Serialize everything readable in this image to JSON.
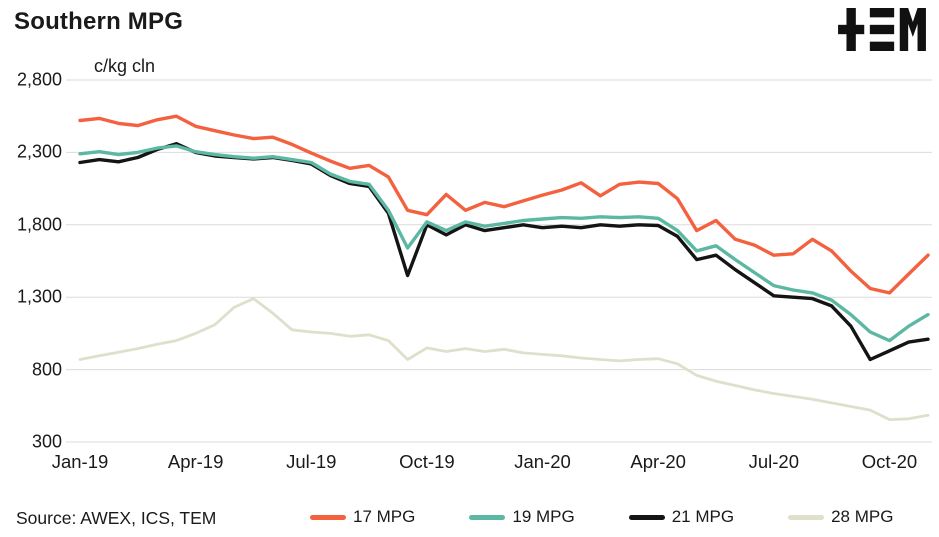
{
  "chart_data": {
    "type": "line",
    "title": "Southern MPG",
    "ylabel": "c/kg cln",
    "source": "Source: AWEX, ICS, TEM",
    "ylim": [
      300,
      2800
    ],
    "y_ticks": [
      2800,
      2300,
      1800,
      1300,
      800,
      300
    ],
    "y_tick_labels": [
      "2,800",
      "2,300",
      "1,800",
      "1,300",
      "800",
      "300"
    ],
    "x_total_months": 22,
    "x_tick_months": [
      0,
      3,
      6,
      9,
      12,
      15,
      18,
      21
    ],
    "x_tick_labels": [
      "Jan-19",
      "Apr-19",
      "Jul-19",
      "Oct-19",
      "Jan-20",
      "Apr-20",
      "Jul-20",
      "Oct-20"
    ],
    "grid": true,
    "grid_color": "#dbdbdb",
    "background": "#ffffff",
    "legend_position": "bottom",
    "logo_text": "TEM",
    "series": [
      {
        "name": "17 MPG",
        "color": "#F4613E",
        "width": 3.4,
        "values": [
          2520,
          2535,
          2500,
          2485,
          2525,
          2550,
          2480,
          2450,
          2420,
          2395,
          2405,
          2355,
          2295,
          2240,
          2190,
          2210,
          2130,
          1900,
          1870,
          2010,
          1900,
          1955,
          1925,
          1965,
          2005,
          2040,
          2090,
          2000,
          2080,
          2095,
          2085,
          1980,
          1760,
          1830,
          1700,
          1660,
          1590,
          1600,
          1700,
          1620,
          1480,
          1360,
          1330,
          1460,
          1590
        ]
      },
      {
        "name": "19 MPG",
        "color": "#5CB8A2",
        "width": 3.4,
        "values": [
          2290,
          2305,
          2285,
          2300,
          2330,
          2345,
          2305,
          2285,
          2270,
          2260,
          2270,
          2250,
          2230,
          2150,
          2100,
          2080,
          1900,
          1640,
          1820,
          1760,
          1820,
          1790,
          1810,
          1830,
          1840,
          1850,
          1845,
          1855,
          1850,
          1855,
          1845,
          1760,
          1620,
          1655,
          1560,
          1470,
          1380,
          1350,
          1330,
          1280,
          1180,
          1060,
          1000,
          1100,
          1180
        ]
      },
      {
        "name": "21 MPG",
        "color": "#141414",
        "width": 3.4,
        "values": [
          2230,
          2250,
          2235,
          2265,
          2320,
          2360,
          2300,
          2275,
          2265,
          2255,
          2265,
          2245,
          2220,
          2140,
          2085,
          2065,
          1880,
          1450,
          1800,
          1730,
          1800,
          1760,
          1780,
          1800,
          1780,
          1790,
          1780,
          1800,
          1790,
          1800,
          1795,
          1720,
          1560,
          1590,
          1490,
          1400,
          1310,
          1300,
          1290,
          1240,
          1100,
          870,
          930,
          990,
          1010
        ]
      },
      {
        "name": "28 MPG",
        "color": "#E0DFCC",
        "width": 2.8,
        "values": [
          870,
          895,
          920,
          945,
          975,
          1000,
          1050,
          1110,
          1230,
          1290,
          1190,
          1075,
          1060,
          1050,
          1030,
          1040,
          1000,
          870,
          950,
          925,
          945,
          925,
          940,
          915,
          905,
          895,
          880,
          870,
          860,
          870,
          875,
          840,
          760,
          720,
          690,
          660,
          635,
          615,
          595,
          570,
          545,
          520,
          455,
          460,
          485
        ]
      }
    ]
  }
}
